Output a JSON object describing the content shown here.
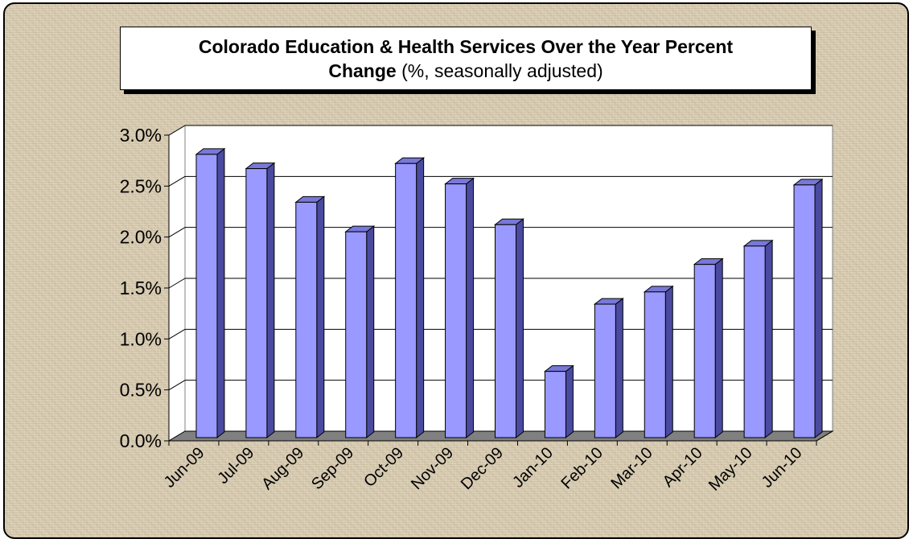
{
  "chart_data": {
    "type": "bar",
    "title_bold_1": "Colorado Education & Health Services Over the Year Percent",
    "title_bold_2": "Change",
    "title_plain_2": "(%, seasonally adjusted)",
    "categories": [
      "Jun-09",
      "Jul-09",
      "Aug-09",
      "Sep-09",
      "Oct-09",
      "Nov-09",
      "Dec-09",
      "Jan-10",
      "Feb-10",
      "Mar-10",
      "Apr-10",
      "May-10",
      "Jun-10"
    ],
    "values": [
      2.78,
      2.64,
      2.31,
      2.02,
      2.69,
      2.49,
      2.09,
      0.65,
      1.31,
      1.43,
      1.7,
      1.88,
      2.48
    ],
    "ylim": [
      0,
      3.0
    ],
    "yticks": [
      "0.0%",
      "0.5%",
      "1.0%",
      "1.5%",
      "2.0%",
      "2.5%",
      "3.0%"
    ],
    "xlabel": "",
    "ylabel": "",
    "grid": true,
    "colors": {
      "bar_front": "#9999ff",
      "bar_side": "#4a4aa0",
      "bar_top": "#7878d8",
      "floor": "#808080",
      "wall": "#ffffff"
    }
  }
}
